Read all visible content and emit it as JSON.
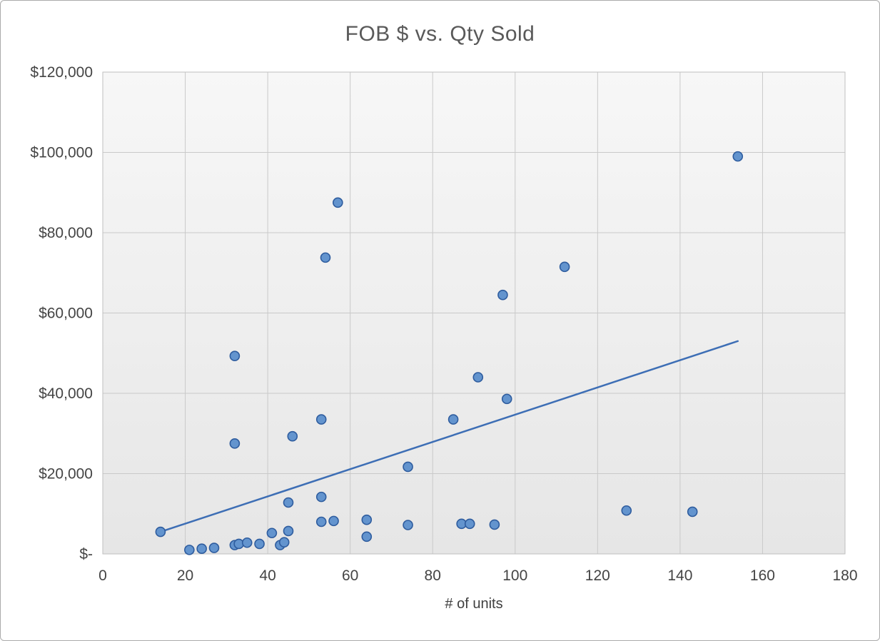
{
  "chart_data": {
    "type": "scatter",
    "title": "FOB $ vs. Qty Sold",
    "xlabel": "# of units",
    "ylabel": "",
    "xlim": [
      0,
      180
    ],
    "ylim": [
      0,
      120000
    ],
    "x_ticks": [
      0,
      20,
      40,
      60,
      80,
      100,
      120,
      140,
      160,
      180
    ],
    "y_ticks": [
      {
        "value": 0,
        "label": "$-"
      },
      {
        "value": 20000,
        "label": "$20,000"
      },
      {
        "value": 40000,
        "label": "$40,000"
      },
      {
        "value": 60000,
        "label": "$60,000"
      },
      {
        "value": 80000,
        "label": "$80,000"
      },
      {
        "value": 100000,
        "label": "$100,000"
      },
      {
        "value": 120000,
        "label": "$120,000"
      }
    ],
    "grid": true,
    "legend_position": "none",
    "series": [
      {
        "name": "FOB $",
        "points": [
          [
            14,
            5500
          ],
          [
            21,
            1000
          ],
          [
            24,
            1300
          ],
          [
            27,
            1500
          ],
          [
            32,
            2200
          ],
          [
            33,
            2500
          ],
          [
            35,
            2800
          ],
          [
            38,
            2500
          ],
          [
            32,
            27500
          ],
          [
            32,
            49300
          ],
          [
            41,
            5200
          ],
          [
            43,
            2200
          ],
          [
            44,
            2900
          ],
          [
            45,
            5700
          ],
          [
            45,
            12800
          ],
          [
            46,
            29300
          ],
          [
            53,
            8000
          ],
          [
            53,
            14200
          ],
          [
            53,
            33500
          ],
          [
            54,
            73800
          ],
          [
            56,
            8200
          ],
          [
            57,
            87500
          ],
          [
            64,
            4300
          ],
          [
            64,
            8500
          ],
          [
            74,
            7200
          ],
          [
            74,
            21700
          ],
          [
            85,
            33500
          ],
          [
            87,
            7500
          ],
          [
            89,
            7500
          ],
          [
            91,
            44000
          ],
          [
            95,
            7300
          ],
          [
            97,
            64500
          ],
          [
            98,
            38600
          ],
          [
            112,
            71500
          ],
          [
            127,
            10800
          ],
          [
            143,
            10500
          ],
          [
            154,
            99000
          ]
        ]
      }
    ],
    "trendline": {
      "x_start": 14,
      "y_start": 5500,
      "x_end": 154,
      "y_end": 53000
    },
    "colors": {
      "marker_fill": "#6394CE",
      "marker_stroke": "#2E5C9E",
      "trendline": "#3D6EB5",
      "gridline": "#C9C9C9",
      "plot_border": "#BFBFBF",
      "plot_bg_top": "#F7F7F7",
      "plot_bg_bottom": "#E6E6E6",
      "title_color": "#595959",
      "tick_color": "#444444"
    }
  }
}
